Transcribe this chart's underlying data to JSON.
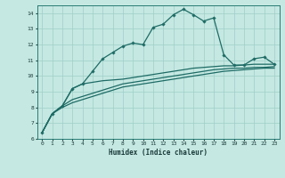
{
  "xlabel": "Humidex (Indice chaleur)",
  "xlim": [
    -0.5,
    23.5
  ],
  "ylim": [
    6,
    14.5
  ],
  "yticks": [
    6,
    7,
    8,
    9,
    10,
    11,
    12,
    13,
    14
  ],
  "xticks": [
    0,
    1,
    2,
    3,
    4,
    5,
    6,
    7,
    8,
    9,
    10,
    11,
    12,
    13,
    14,
    15,
    16,
    17,
    18,
    19,
    20,
    21,
    22,
    23
  ],
  "bg_color": "#c5e8e2",
  "grid_color": "#9ecfc7",
  "line_color": "#1e6b65",
  "line1_x": [
    0,
    1,
    2,
    3,
    4,
    5,
    6,
    7,
    8,
    9,
    10,
    11,
    12,
    13,
    14,
    15,
    16,
    17,
    18,
    19,
    20,
    21,
    22,
    23
  ],
  "line1_y": [
    6.4,
    7.6,
    8.1,
    9.2,
    9.5,
    10.3,
    11.1,
    11.5,
    11.9,
    12.1,
    12.0,
    13.1,
    13.3,
    13.9,
    14.25,
    13.9,
    13.5,
    13.7,
    11.35,
    10.7,
    10.7,
    11.1,
    11.2,
    10.75
  ],
  "line2_x": [
    0,
    1,
    2,
    3,
    4,
    5,
    6,
    7,
    8,
    9,
    10,
    11,
    12,
    13,
    14,
    15,
    16,
    17,
    18,
    19,
    20,
    21,
    22,
    23
  ],
  "line2_y": [
    6.4,
    7.6,
    8.1,
    9.2,
    9.5,
    9.6,
    9.7,
    9.75,
    9.8,
    9.9,
    10.0,
    10.1,
    10.2,
    10.3,
    10.4,
    10.5,
    10.55,
    10.6,
    10.65,
    10.65,
    10.7,
    10.75,
    10.75,
    10.75
  ],
  "line3_x": [
    0,
    1,
    2,
    3,
    4,
    5,
    6,
    7,
    8,
    9,
    10,
    11,
    12,
    13,
    14,
    15,
    16,
    17,
    18,
    19,
    20,
    21,
    22,
    23
  ],
  "line3_y": [
    6.4,
    7.6,
    8.1,
    8.5,
    8.7,
    8.9,
    9.1,
    9.3,
    9.5,
    9.6,
    9.7,
    9.8,
    9.9,
    10.0,
    10.1,
    10.2,
    10.3,
    10.4,
    10.45,
    10.5,
    10.5,
    10.55,
    10.55,
    10.6
  ],
  "line4_x": [
    0,
    1,
    2,
    3,
    4,
    5,
    6,
    7,
    8,
    9,
    10,
    11,
    12,
    13,
    14,
    15,
    16,
    17,
    18,
    19,
    20,
    21,
    22,
    23
  ],
  "line4_y": [
    6.4,
    7.6,
    8.0,
    8.3,
    8.5,
    8.7,
    8.9,
    9.1,
    9.3,
    9.4,
    9.5,
    9.6,
    9.7,
    9.8,
    9.9,
    10.0,
    10.1,
    10.2,
    10.3,
    10.35,
    10.4,
    10.45,
    10.5,
    10.5
  ]
}
